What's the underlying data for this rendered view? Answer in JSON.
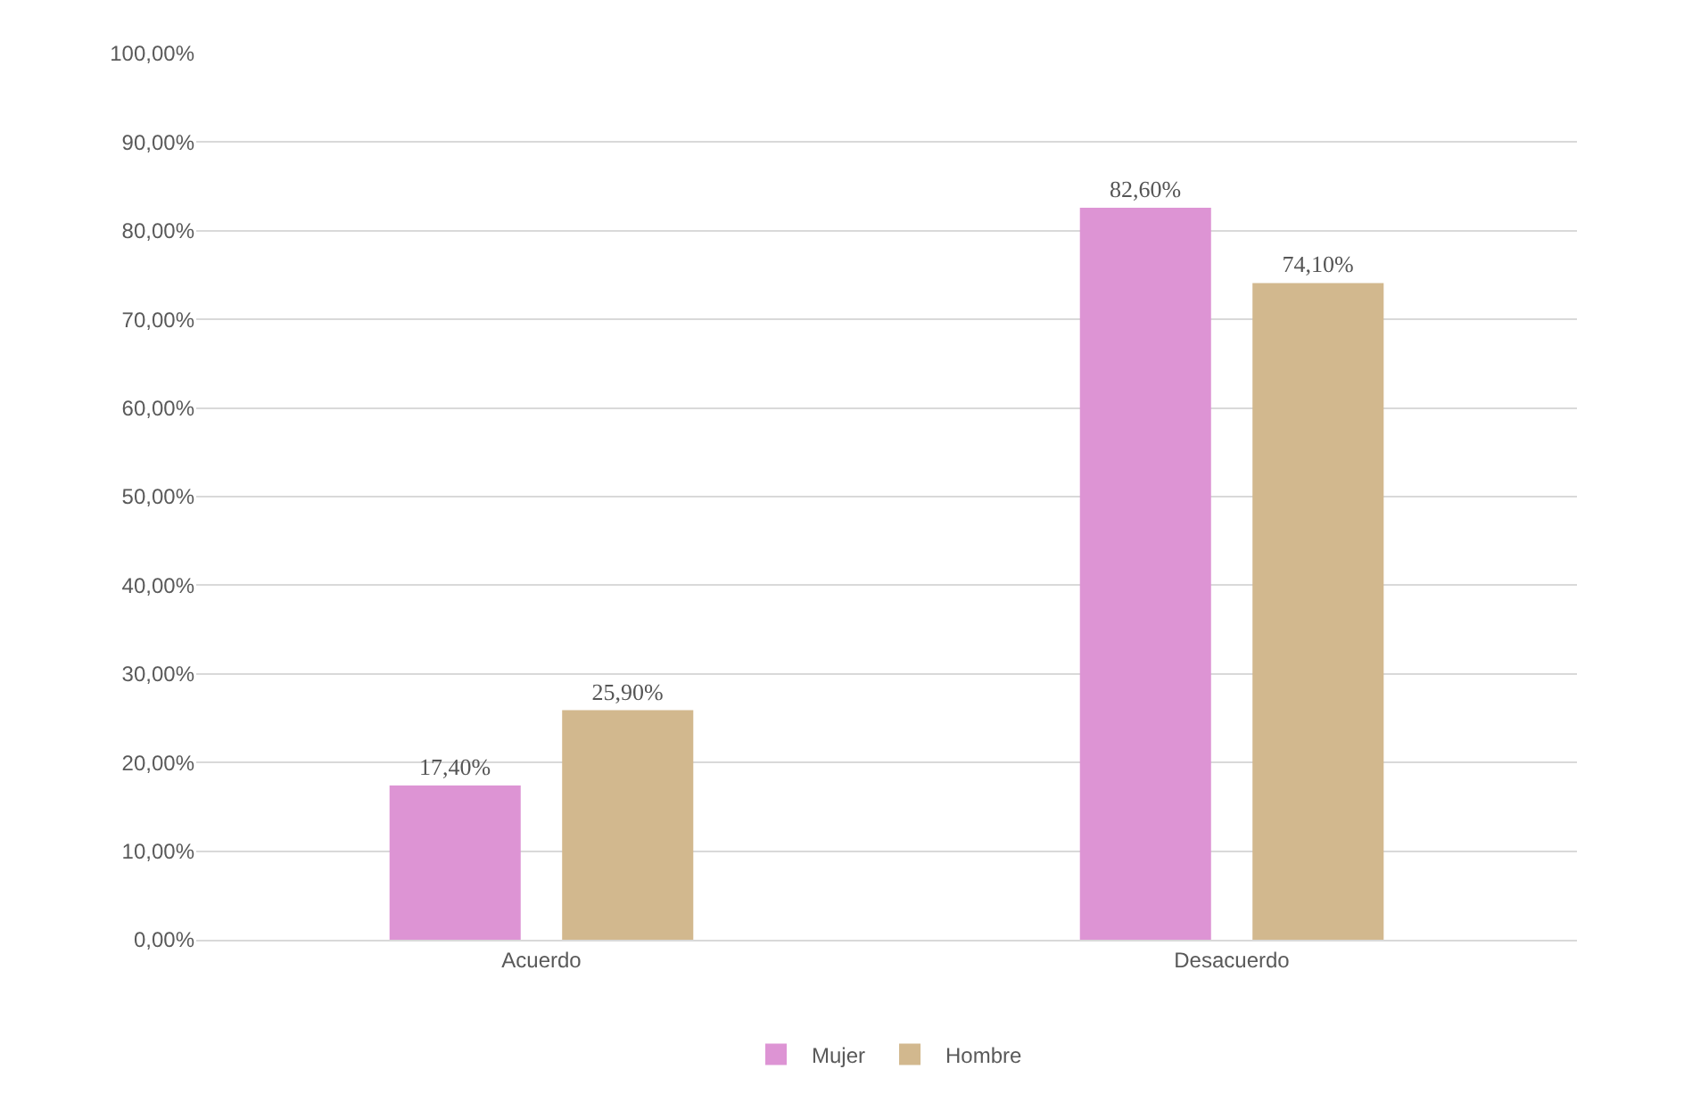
{
  "chart_data": {
    "type": "bar",
    "categories": [
      "Acuerdo",
      "Desacuerdo"
    ],
    "series": [
      {
        "name": "Mujer",
        "color": "#dd94d4",
        "values": [
          17.4,
          82.6
        ],
        "value_labels": [
          "17,40%",
          "82,60%"
        ]
      },
      {
        "name": "Hombre",
        "color": "#d2b88e",
        "values": [
          25.9,
          74.1
        ],
        "value_labels": [
          "25,90%",
          "74,10%"
        ]
      }
    ],
    "ylim": [
      0,
      100
    ],
    "yticks": [
      {
        "value": 0,
        "label": "0,00%"
      },
      {
        "value": 10,
        "label": "10,00%"
      },
      {
        "value": 20,
        "label": "20,00%"
      },
      {
        "value": 30,
        "label": "30,00%"
      },
      {
        "value": 40,
        "label": "40,00%"
      },
      {
        "value": 50,
        "label": "50,00%"
      },
      {
        "value": 60,
        "label": "60,00%"
      },
      {
        "value": 70,
        "label": "70,00%"
      },
      {
        "value": 80,
        "label": "80,00%"
      },
      {
        "value": 90,
        "label": "90,00%"
      },
      {
        "value": 100,
        "label": "100,00%"
      }
    ],
    "grid": "y",
    "legend": "bottom"
  }
}
